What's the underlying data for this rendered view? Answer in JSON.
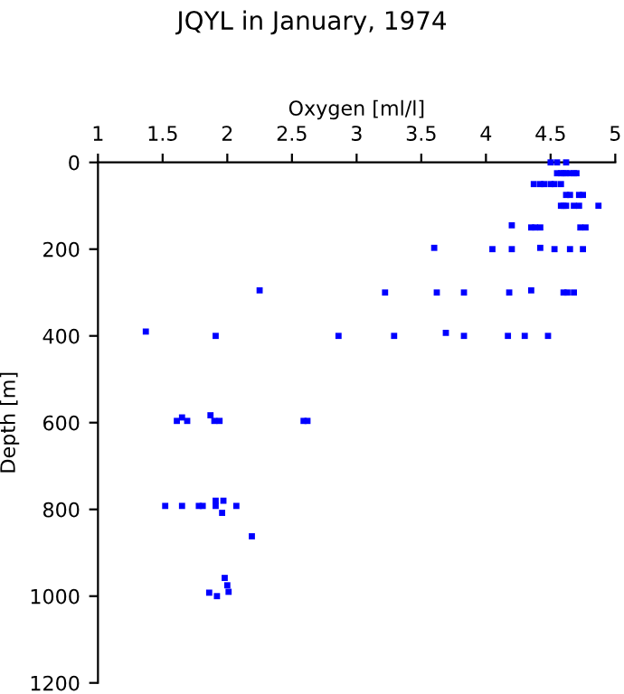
{
  "chart_data": {
    "type": "scatter",
    "title": "JQYL in January, 1974",
    "xlabel": "Oxygen [ml/l]",
    "ylabel": "Depth [m]",
    "x": [
      4.5,
      4.55,
      4.62,
      4.55,
      4.58,
      4.6,
      4.62,
      4.65,
      4.68,
      4.7,
      4.37,
      4.42,
      4.45,
      4.5,
      4.53,
      4.58,
      4.62,
      4.65,
      4.72,
      4.75,
      4.58,
      4.6,
      4.62,
      4.68,
      4.72,
      4.87,
      4.2,
      4.35,
      4.38,
      4.42,
      4.73,
      4.77,
      3.6,
      4.05,
      4.2,
      4.42,
      4.53,
      4.65,
      4.75,
      2.25,
      3.22,
      3.62,
      3.83,
      4.18,
      4.35,
      4.6,
      4.63,
      4.68,
      1.37,
      1.91,
      2.86,
      3.29,
      3.69,
      3.83,
      4.17,
      4.3,
      4.48,
      1.61,
      1.65,
      1.69,
      1.87,
      1.9,
      1.94,
      2.59,
      2.62,
      1.52,
      1.65,
      1.78,
      1.81,
      1.91,
      1.91,
      1.97,
      2.07,
      1.96,
      2.19,
      1.98,
      2.0,
      1.86,
      1.92,
      2.01
    ],
    "series": [
      {
        "color": "#0000ff",
        "values": [
          0,
          0,
          0,
          25,
          25,
          25,
          25,
          25,
          25,
          25,
          50,
          50,
          50,
          50,
          50,
          50,
          75,
          75,
          75,
          75,
          100,
          100,
          100,
          100,
          100,
          100,
          145,
          150,
          150,
          150,
          150,
          150,
          197,
          200,
          200,
          197,
          200,
          200,
          200,
          295,
          300,
          300,
          300,
          300,
          295,
          300,
          300,
          300,
          390,
          400,
          400,
          400,
          393,
          400,
          400,
          400,
          400,
          596,
          588,
          596,
          583,
          596,
          596,
          596,
          596,
          792,
          792,
          792,
          792,
          780,
          792,
          780,
          792,
          808,
          862,
          958,
          975,
          992,
          1000,
          990
        ]
      }
    ],
    "xlim": [
      1,
      5
    ],
    "xticks": [
      1,
      1.5,
      2,
      2.5,
      3,
      3.5,
      4,
      4.5,
      5
    ],
    "ylim": [
      1200,
      0
    ],
    "yticks": [
      0,
      200,
      400,
      600,
      800,
      1000,
      1200
    ],
    "marker": "square",
    "grid": false,
    "legend": false
  }
}
